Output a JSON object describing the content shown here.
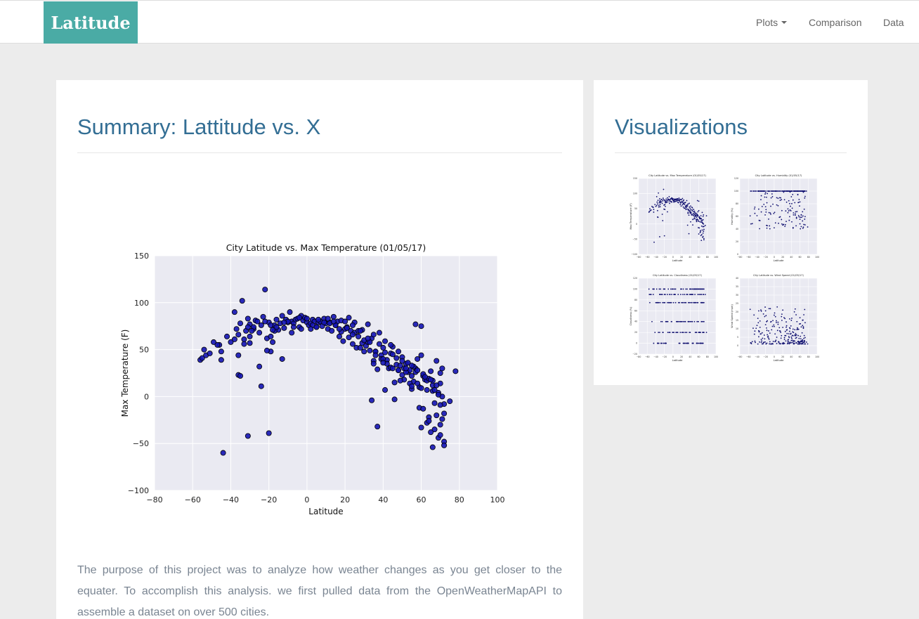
{
  "navbar": {
    "brand": "Latitude",
    "items": [
      {
        "label": "Plots",
        "dropdown": true
      },
      {
        "label": "Comparison"
      },
      {
        "label": "Data"
      }
    ]
  },
  "summary": {
    "title": "Summary: Lattitude vs. X",
    "text": "The purpose of this project was to analyze how weather changes as you get closer to the equater. To accomplish this analysis. we first pulled data from the OpenWeatherMapAPI to assemble a dataset on over 500 cities."
  },
  "visualizations": {
    "title": "Visualizations",
    "thumbnails": [
      {
        "title": "City Latitude vs. Max Temperature (01/05/17)",
        "ylabel": "Max Temperature (F)",
        "xlabel": "Latitude",
        "xlim": [
          -80,
          100
        ],
        "xticks": [
          -80,
          -60,
          -40,
          -20,
          0,
          20,
          40,
          60,
          80,
          100
        ],
        "ylim": [
          -100,
          150
        ],
        "yticks": [
          -100,
          -50,
          0,
          50,
          100,
          150
        ],
        "kind": "temp"
      },
      {
        "title": "City Latitude vs. Humidity (01/05/17)",
        "ylabel": "Humidity (%)",
        "xlabel": "Latitude",
        "xlim": [
          -80,
          100
        ],
        "xticks": [
          -80,
          -60,
          -40,
          -20,
          0,
          20,
          40,
          60,
          80,
          100
        ],
        "ylim": [
          0,
          120
        ],
        "yticks": [
          0,
          20,
          40,
          60,
          80,
          100,
          120
        ],
        "kind": "humidity"
      },
      {
        "title": "City Latitude vs. Cloudiness (01/05/17)",
        "ylabel": "Cloudiness (%)",
        "xlabel": "Latitude",
        "xlim": [
          -80,
          100
        ],
        "xticks": [
          -80,
          -60,
          -40,
          -20,
          0,
          20,
          40,
          60,
          80,
          100
        ],
        "ylim": [
          -20,
          120
        ],
        "yticks": [
          -20,
          0,
          20,
          40,
          60,
          80,
          100,
          120
        ],
        "kind": "cloud"
      },
      {
        "title": "City Latitude vs. Wind Speed (01/05/17)",
        "ylabel": "Wind Speed (mph)",
        "xlabel": "Latitude",
        "xlim": [
          -80,
          100
        ],
        "xticks": [
          -80,
          -60,
          -40,
          -20,
          0,
          20,
          40,
          60,
          80,
          100
        ],
        "ylim": [
          -5,
          40
        ],
        "yticks": [
          0,
          5,
          10,
          15,
          20,
          25,
          30,
          35,
          40
        ],
        "kind": "wind"
      }
    ]
  },
  "colors": {
    "brand": "#4aaba5",
    "heading": "#336e94",
    "plot_bg": "#eaeaf2",
    "marker": "#1414b4"
  },
  "chart_data": {
    "type": "scatter",
    "title": "City Latitude vs. Max Temperature (01/05/17)",
    "xlabel": "Latitude",
    "ylabel": "Max Temperature (F)",
    "xlim": [
      -80,
      100
    ],
    "ylim": [
      -100,
      150
    ],
    "xticks": [
      -80,
      -60,
      -40,
      -20,
      0,
      20,
      40,
      60,
      80,
      100
    ],
    "xtick_labels": [
      "−80",
      "−60",
      "−40",
      "−20",
      "0",
      "20",
      "40",
      "60",
      "80",
      "100"
    ],
    "yticks": [
      -100,
      -50,
      0,
      50,
      100,
      150
    ],
    "ytick_labels": [
      "−100",
      "−50",
      "0",
      "50",
      "100",
      "150"
    ],
    "grid": true,
    "x": [
      -56,
      -55,
      -53,
      -46,
      -45,
      -45,
      -42,
      -40,
      -38,
      -37,
      -36,
      -35,
      -34,
      -33,
      -32,
      -31,
      -30,
      -30,
      -28,
      -27,
      -26,
      -25,
      -24,
      -23,
      -22,
      -21,
      -20,
      -19,
      -19,
      -18,
      -17,
      -16,
      -15,
      -14,
      -13,
      -12,
      -11,
      -10,
      -9,
      -8,
      -7,
      -6,
      -5,
      -4,
      -3,
      -2,
      -1,
      0,
      1,
      2,
      3,
      4,
      5,
      6,
      7,
      8,
      9,
      10,
      11,
      12,
      13,
      14,
      15,
      16,
      17,
      18,
      19,
      20,
      21,
      22,
      23,
      24,
      25,
      26,
      27,
      28,
      29,
      30,
      31,
      32,
      33,
      34,
      35,
      36,
      37,
      38,
      39,
      40,
      41,
      42,
      43,
      44,
      45,
      46,
      47,
      48,
      49,
      50,
      51,
      52,
      53,
      54,
      55,
      56,
      57,
      58,
      59,
      60,
      61,
      62,
      63,
      64,
      65,
      66,
      67,
      68,
      69,
      70,
      71,
      72,
      -44,
      -36,
      -33,
      -30,
      -28,
      -25,
      -22,
      -19,
      -17,
      -13,
      -10,
      -7,
      -3,
      0,
      3,
      6,
      9,
      12,
      15,
      18,
      21,
      24,
      27,
      30,
      33,
      36,
      39,
      42,
      45,
      48,
      51,
      54,
      57,
      60,
      63,
      66,
      69,
      72,
      -31,
      -20,
      -12,
      -4,
      5,
      11,
      17,
      25,
      32,
      38,
      44,
      50,
      56,
      61,
      66,
      70,
      -35,
      -24,
      -16,
      -8,
      2,
      14,
      22,
      29,
      35,
      41,
      47,
      53,
      58,
      64,
      68,
      71,
      34,
      37,
      41,
      46,
      49,
      52,
      55,
      59,
      62,
      65,
      67,
      69,
      71,
      72,
      60,
      63,
      66,
      70,
      55,
      58,
      61,
      64,
      67,
      70,
      35,
      40,
      45,
      50,
      55,
      -21,
      -18,
      -29,
      -31,
      -36,
      -38,
      -47,
      -49,
      -51,
      -54,
      75,
      78,
      70,
      72,
      65,
      68,
      57,
      60,
      44,
      48,
      52,
      20,
      24,
      28,
      32,
      36,
      40
    ],
    "y": [
      39,
      41,
      44,
      55,
      48,
      39,
      64,
      58,
      90,
      72,
      66,
      78,
      102,
      61,
      70,
      83,
      77,
      57,
      72,
      81,
      80,
      68,
      76,
      85,
      114,
      62,
      79,
      64,
      48,
      58,
      76,
      82,
      71,
      78,
      40,
      73,
      82,
      79,
      90,
      80,
      78,
      82,
      83,
      74,
      86,
      81,
      84,
      79,
      76,
      78,
      82,
      80,
      74,
      79,
      80,
      75,
      83,
      78,
      72,
      79,
      70,
      85,
      76,
      80,
      64,
      81,
      59,
      72,
      74,
      63,
      70,
      56,
      68,
      52,
      64,
      52,
      57,
      48,
      54,
      58,
      49,
      62,
      38,
      48,
      29,
      56,
      44,
      52,
      47,
      39,
      30,
      31,
      53,
      15,
      34,
      28,
      33,
      23,
      30,
      35,
      26,
      28,
      22,
      16,
      30,
      40,
      10,
      44,
      22,
      18,
      7,
      -22,
      27,
      6,
      -35,
      38,
      -44,
      25,
      0,
      -48,
      -60,
      23,
      56,
      64,
      74,
      32,
      80,
      76,
      70,
      86,
      80,
      74,
      72,
      83,
      76,
      82,
      79,
      78,
      76,
      69,
      73,
      66,
      70,
      60,
      58,
      48,
      40,
      35,
      30,
      28,
      18,
      14,
      26,
      9,
      17,
      12,
      4,
      -8,
      -42,
      -39,
      79,
      84,
      74,
      83,
      72,
      79,
      77,
      68,
      46,
      42,
      32,
      24,
      17,
      14,
      22,
      11,
      74,
      68,
      72,
      80,
      84,
      71,
      66,
      59,
      41,
      36,
      28,
      19,
      12,
      30,
      -4,
      -32,
      7,
      -3,
      17,
      26,
      8,
      -12,
      21,
      18,
      7,
      2,
      -24,
      -18,
      -33,
      -28,
      -54,
      -41,
      11,
      14,
      -13,
      -26,
      -7,
      -9,
      35,
      40,
      45,
      38,
      33,
      49,
      71,
      70,
      74,
      44,
      61,
      55,
      58,
      46,
      50,
      -5,
      27,
      -30,
      -52,
      -38,
      -20,
      77,
      75,
      55,
      48,
      30,
      80,
      76,
      70,
      62,
      44,
      36
    ]
  }
}
